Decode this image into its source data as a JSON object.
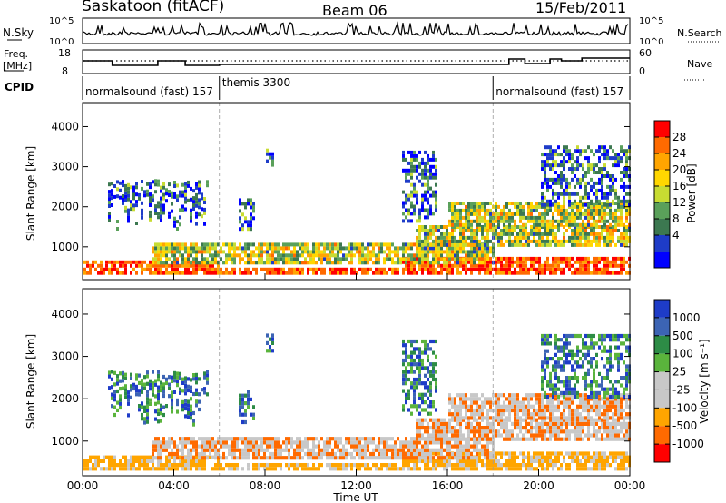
{
  "header": {
    "title": "Saskatoon (fitACF)",
    "beam": "Beam 06",
    "date": "15/Feb/2011"
  },
  "panels": {
    "noise": {
      "label": "N.Sky",
      "left_ticks": [
        "10^5",
        "10^0"
      ],
      "right_ticks": [
        "10^5",
        "10^0"
      ],
      "right_label": "N.Search"
    },
    "freq": {
      "label_line1": "Freq.",
      "label_line2": "[MHz]",
      "left_ticks": [
        "18",
        "8"
      ],
      "right_ticks": [
        "60",
        "0"
      ],
      "right_label": "Nave"
    },
    "cpid": {
      "label": "CPID",
      "segments": [
        {
          "text": "normalsound (fast) 157",
          "start": 0.0
        },
        {
          "text": "themis 3300",
          "start": 6.0
        },
        {
          "text": "normalsound (fast) 157",
          "start": 18.0
        }
      ]
    }
  },
  "chart_data": [
    {
      "type": "heatmap",
      "name": "power",
      "ylabel": "Slant Range [km]",
      "yticks": [
        1000,
        2000,
        3000,
        4000
      ],
      "ylim": [
        180,
        4600
      ],
      "colorbar_label": "Power [dB]",
      "colorbar_ticks": [
        "28",
        "24",
        "20",
        "16",
        "12",
        "8",
        "4"
      ],
      "colorbar_colors": [
        "#ff0000",
        "#ff6a00",
        "#ffa500",
        "#ffd700",
        "#c8dc32",
        "#5aa05a",
        "#3c7850",
        "#1e3cc8",
        "#0000ff"
      ]
    },
    {
      "type": "heatmap",
      "name": "velocity",
      "ylabel": "Slant Range [km]",
      "yticks": [
        1000,
        2000,
        3000,
        4000
      ],
      "ylim": [
        180,
        4600
      ],
      "colorbar_label": "Velocity [m s⁻¹]",
      "colorbar_ticks": [
        "1000",
        "500",
        "100",
        "25",
        "-25",
        "-100",
        "-500",
        "-1000"
      ],
      "colorbar_colors": [
        "#1e3cc8",
        "#3c64b4",
        "#2d8c46",
        "#5ab43c",
        "#c8c8c8",
        "#c8c8c8",
        "#ffa500",
        "#ff6a00",
        "#ff0000"
      ]
    }
  ],
  "axis": {
    "xlabel": "Time UT",
    "xlim": [
      0,
      24
    ],
    "xticks": [
      "00:00",
      "04:00",
      "08:00",
      "12:00",
      "16:00",
      "20:00",
      "00:00"
    ],
    "xtick_hours": [
      0,
      4,
      8,
      12,
      16,
      20,
      24
    ]
  }
}
